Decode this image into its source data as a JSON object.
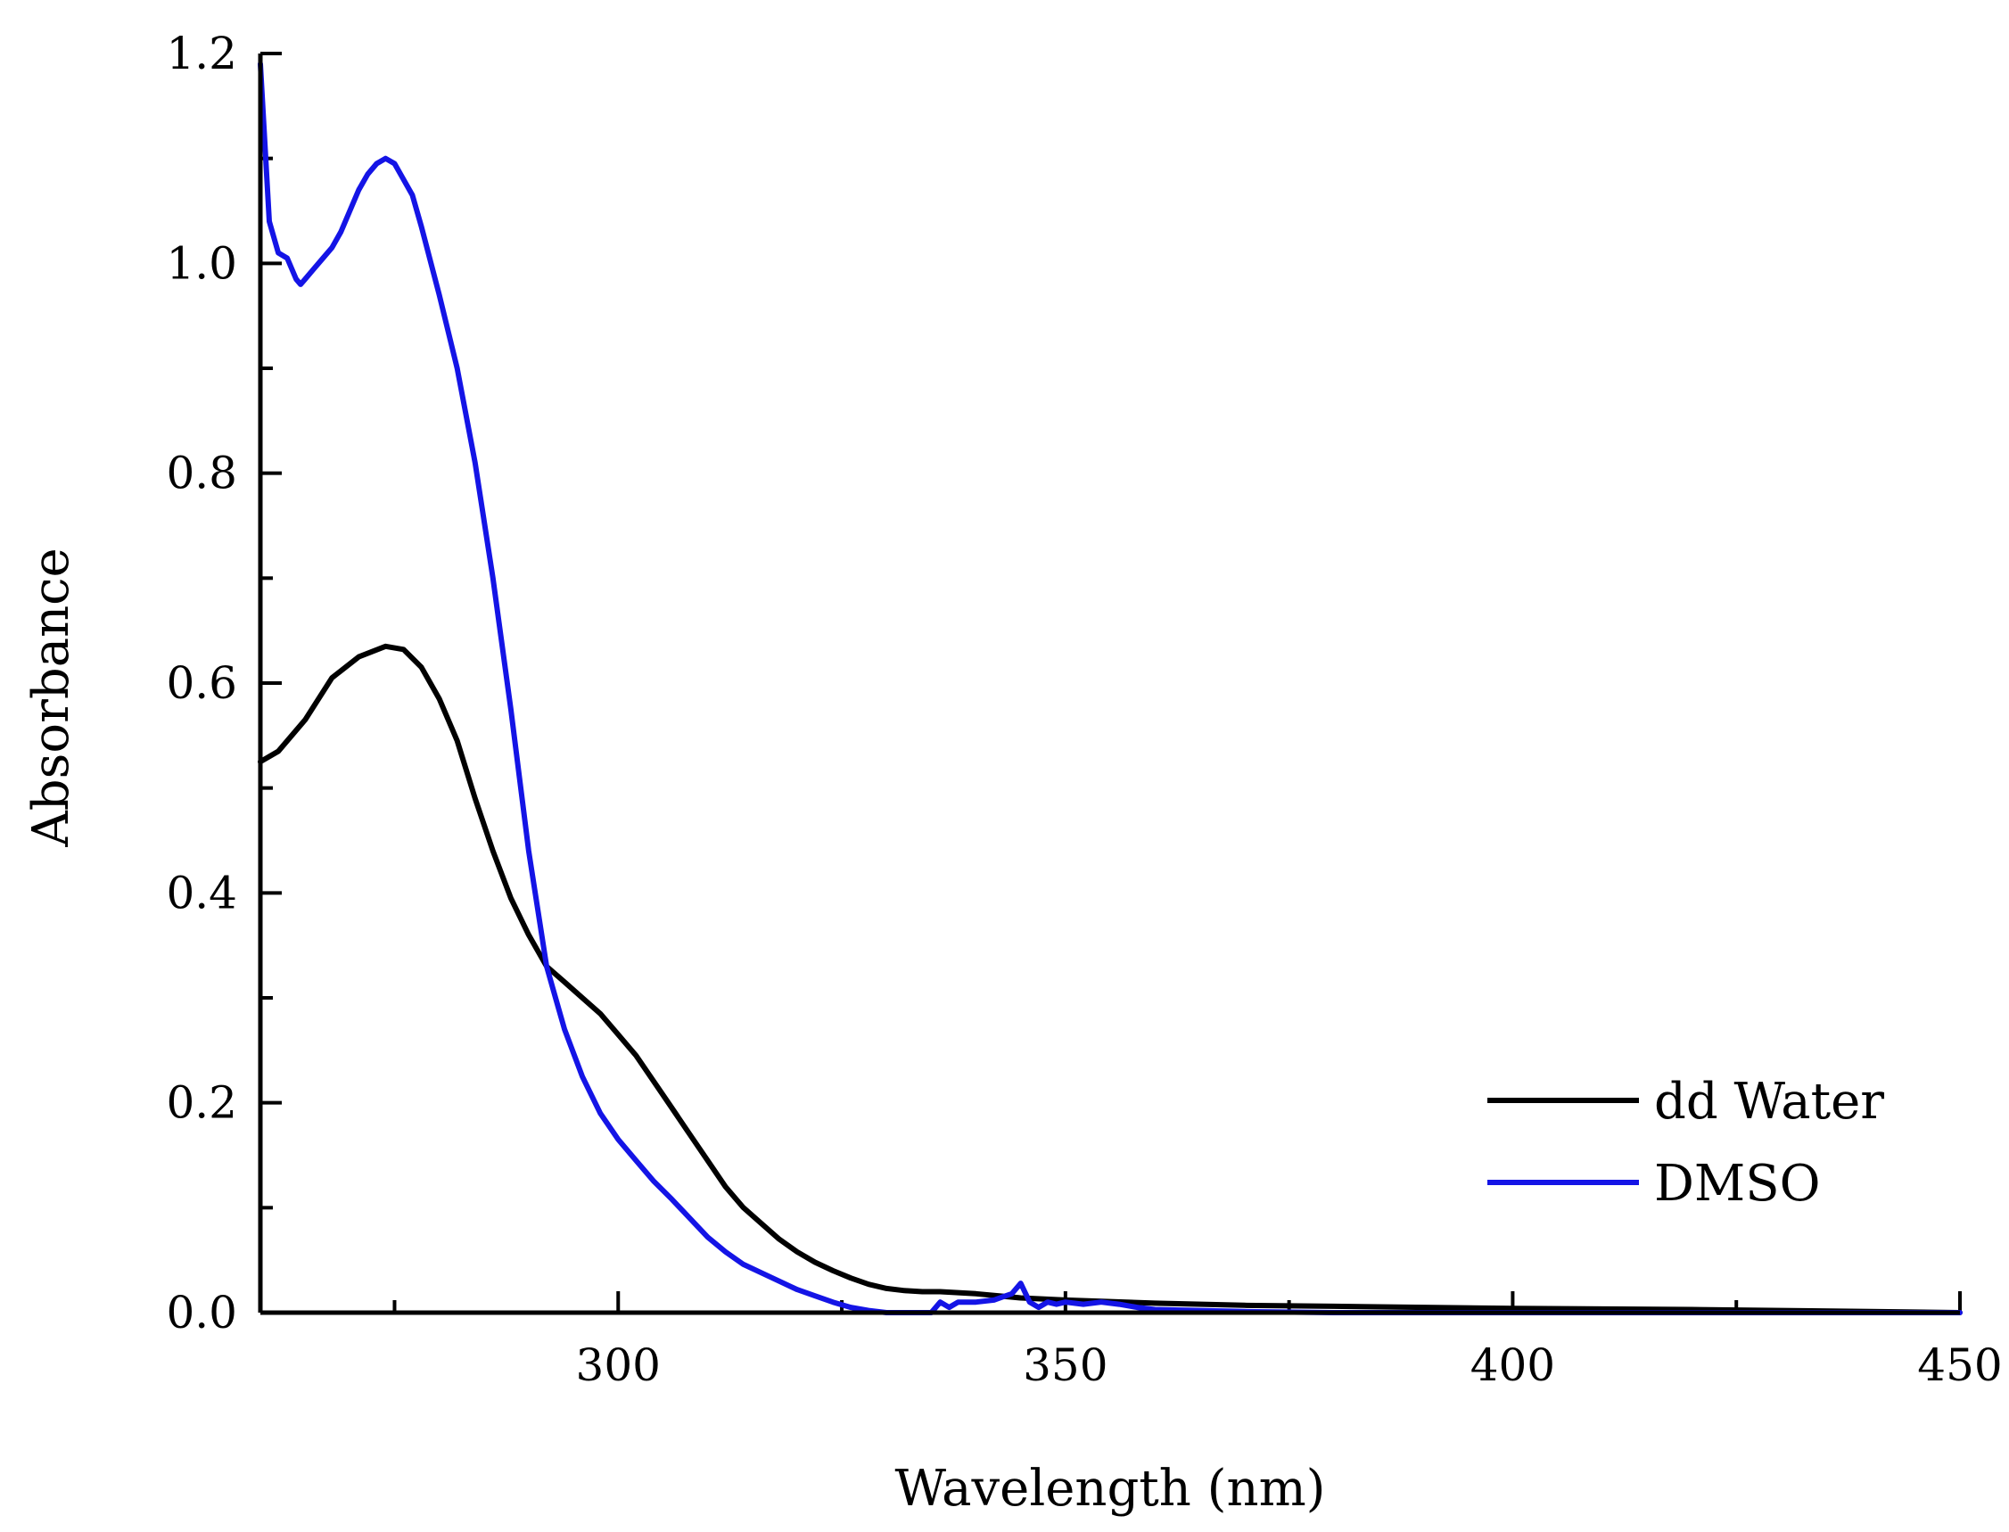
{
  "chart_data": {
    "type": "line",
    "title": "",
    "xlabel": "Wavelength (nm)",
    "ylabel": "Absorbance",
    "xlim": [
      260,
      450
    ],
    "ylim": [
      0.0,
      1.2
    ],
    "x_ticks": [
      300,
      350,
      400,
      450
    ],
    "x_tick_labels": [
      "300",
      "350",
      "400",
      "450"
    ],
    "x_minor_ticks": [
      275,
      325,
      375,
      425
    ],
    "y_ticks": [
      0.0,
      0.2,
      0.4,
      0.6,
      0.8,
      1.0,
      1.2
    ],
    "y_tick_labels": [
      "0.0",
      "0.2",
      "0.4",
      "0.6",
      "0.8",
      "1.0",
      "1.2"
    ],
    "y_minor_ticks": [
      0.1,
      0.3,
      0.5,
      0.7,
      0.9,
      1.1
    ],
    "grid": false,
    "legend": {
      "position": "bottom-right"
    },
    "series": [
      {
        "name": "dd Water",
        "color": "#000000",
        "x": [
          260,
          262,
          265,
          268,
          271,
          274,
          276,
          278,
          280,
          282,
          284,
          286,
          288,
          290,
          292,
          294,
          296,
          298,
          300,
          302,
          304,
          306,
          308,
          310,
          312,
          314,
          316,
          318,
          320,
          322,
          324,
          326,
          328,
          330,
          332,
          334,
          336,
          338,
          340,
          345,
          350,
          360,
          370,
          380,
          400,
          420,
          440,
          450
        ],
        "y": [
          0.525,
          0.535,
          0.565,
          0.605,
          0.625,
          0.635,
          0.632,
          0.615,
          0.585,
          0.545,
          0.49,
          0.44,
          0.395,
          0.36,
          0.33,
          0.315,
          0.3,
          0.285,
          0.265,
          0.245,
          0.22,
          0.195,
          0.17,
          0.145,
          0.12,
          0.1,
          0.085,
          0.07,
          0.058,
          0.048,
          0.04,
          0.033,
          0.027,
          0.023,
          0.021,
          0.02,
          0.02,
          0.019,
          0.018,
          0.014,
          0.012,
          0.009,
          0.007,
          0.006,
          0.004,
          0.003,
          0.001,
          0.0
        ]
      },
      {
        "name": "DMSO",
        "color": "#1414e6",
        "x": [
          260,
          261,
          262,
          263,
          264,
          264.5,
          265,
          266,
          267,
          268,
          269,
          270,
          271,
          272,
          273,
          274,
          275,
          276,
          277,
          278,
          280,
          282,
          284,
          286,
          288,
          290,
          292,
          293,
          294,
          296,
          298,
          300,
          302,
          304,
          306,
          308,
          310,
          312,
          314,
          316,
          318,
          320,
          322,
          324,
          326,
          328,
          330,
          332,
          333,
          334,
          335,
          336,
          337,
          338,
          340,
          342,
          343,
          344,
          345,
          346,
          347,
          348,
          349,
          350,
          352,
          354,
          356,
          358,
          360,
          365,
          370,
          380,
          400,
          420,
          440,
          450
        ],
        "y": [
          1.19,
          1.04,
          1.01,
          1.005,
          0.985,
          0.98,
          0.985,
          0.995,
          1.005,
          1.015,
          1.03,
          1.05,
          1.07,
          1.085,
          1.095,
          1.1,
          1.095,
          1.08,
          1.065,
          1.035,
          0.97,
          0.9,
          0.81,
          0.7,
          0.575,
          0.44,
          0.33,
          0.3,
          0.27,
          0.225,
          0.19,
          0.165,
          0.145,
          0.125,
          0.108,
          0.09,
          0.072,
          0.058,
          0.046,
          0.038,
          0.03,
          0.022,
          0.016,
          0.01,
          0.005,
          0.002,
          0.0,
          0.0,
          0.0,
          0.0,
          0.0,
          0.01,
          0.005,
          0.01,
          0.01,
          0.012,
          0.015,
          0.018,
          0.028,
          0.01,
          0.005,
          0.01,
          0.008,
          0.01,
          0.008,
          0.01,
          0.008,
          0.005,
          0.003,
          0.002,
          0.001,
          0.0,
          0.0,
          0.0,
          0.0,
          0.0
        ]
      }
    ]
  }
}
